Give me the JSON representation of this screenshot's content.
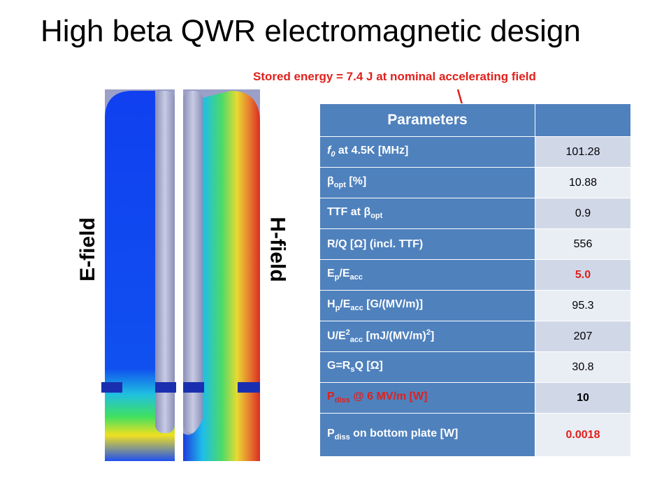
{
  "title": "High beta QWR electromagnetic design",
  "annotation": "Stored energy = 7.4 J at nominal accelerating field",
  "left_label": "E-field",
  "right_label": "H-field",
  "table": {
    "header": [
      "Parameters",
      ""
    ],
    "rows": [
      {
        "label": [
          {
            "text": "f",
            "pos": "italic"
          },
          {
            "text": "0",
            "pos": "sub-italic"
          },
          {
            "text": " at 4.5K [MHz]"
          }
        ],
        "value": "101.28"
      },
      {
        "label": [
          {
            "text": "β"
          },
          {
            "text": "opt",
            "pos": "sub"
          },
          {
            "text": " [%]"
          }
        ],
        "value": "10.88"
      },
      {
        "label": [
          {
            "text": "TTF at β"
          },
          {
            "text": "opt",
            "pos": "sub"
          }
        ],
        "value": "0.9"
      },
      {
        "label": [
          {
            "text": "R/Q [Ω] (incl. TTF)"
          }
        ],
        "value": "556"
      },
      {
        "label": [
          {
            "text": "E"
          },
          {
            "text": "p",
            "pos": "sub"
          },
          {
            "text": "/E"
          },
          {
            "text": "acc",
            "pos": "sub"
          }
        ],
        "value": "5.0",
        "value_color": "#e0201b",
        "value_bold": true
      },
      {
        "label": [
          {
            "text": "H"
          },
          {
            "text": "p",
            "pos": "sub"
          },
          {
            "text": "/E"
          },
          {
            "text": "acc",
            "pos": "sub"
          },
          {
            "text": " [G/(MV/m)]"
          }
        ],
        "value": "95.3"
      },
      {
        "label": [
          {
            "text": "U/E"
          },
          {
            "text": "2",
            "pos": "sup"
          },
          {
            "text": "acc",
            "pos": "sub"
          },
          {
            "text": " [mJ/(MV/m)"
          },
          {
            "text": "2",
            "pos": "sup"
          },
          {
            "text": "]"
          }
        ],
        "value": "207"
      },
      {
        "label": [
          {
            "text": "G=R"
          },
          {
            "text": "s",
            "pos": "sub"
          },
          {
            "text": "Q [Ω]"
          }
        ],
        "value": "30.8"
      },
      {
        "label": [
          {
            "text": "P"
          },
          {
            "text": "diss",
            "pos": "sub"
          },
          {
            "text": " @ 6 MV/m [W]"
          }
        ],
        "label_color": "#e0201b",
        "value": "10",
        "value_bold": true
      },
      {
        "label": [
          {
            "text": "P"
          },
          {
            "text": "diss",
            "pos": "sub"
          },
          {
            "text": " on bottom plate [W]"
          }
        ],
        "value": "0.0018",
        "value_color": "#e0201b",
        "value_bold": true
      }
    ]
  }
}
